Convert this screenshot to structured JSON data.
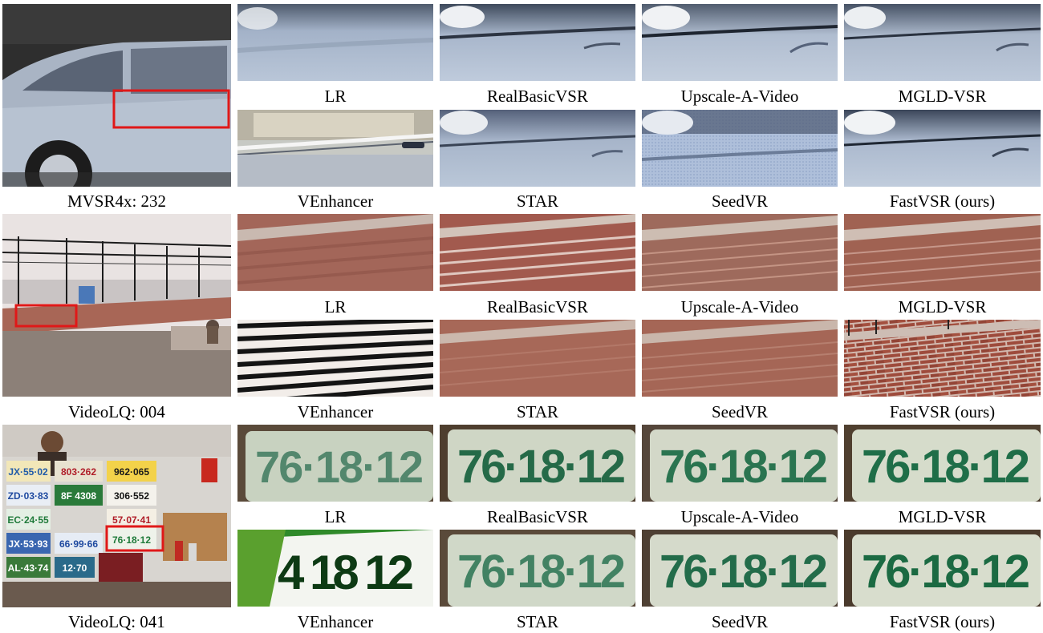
{
  "rows": [
    {
      "ref_caption": "MVSR4x: 232",
      "theme": "car",
      "top_labels": [
        "LR",
        "RealBasicVSR",
        "Upscale-A-Video",
        "MGLD-VSR"
      ],
      "bottom_labels": [
        "VEnhancer",
        "STAR",
        "SeedVR",
        "FastVSR (ours)"
      ]
    },
    {
      "ref_caption": "VideoLQ: 004",
      "theme": "brick",
      "top_labels": [
        "LR",
        "RealBasicVSR",
        "Upscale-A-Video",
        "MGLD-VSR"
      ],
      "bottom_labels": [
        "VEnhancer",
        "STAR",
        "SeedVR",
        "FastVSR (ours)"
      ]
    },
    {
      "ref_caption": "VideoLQ: 041",
      "theme": "plate",
      "plate_text": "76·18·12",
      "venhancer_plate_text": "4 18 12",
      "ref_plates": [
        "JX·55·02",
        "803·262",
        "962·065",
        "ZD·03·83",
        "8F 4308",
        "306·552",
        "EC·24·55",
        "57·07·41",
        "JX·53·93",
        "66·99·66",
        "76·18·12",
        "AL·43·74",
        "12·70"
      ],
      "top_labels": [
        "LR",
        "RealBasicVSR",
        "Upscale-A-Video",
        "MGLD-VSR"
      ],
      "bottom_labels": [
        "VEnhancer",
        "STAR",
        "SeedVR",
        "FastVSR (ours)"
      ]
    }
  ],
  "colors": {
    "highlight_box": "#e01818"
  }
}
